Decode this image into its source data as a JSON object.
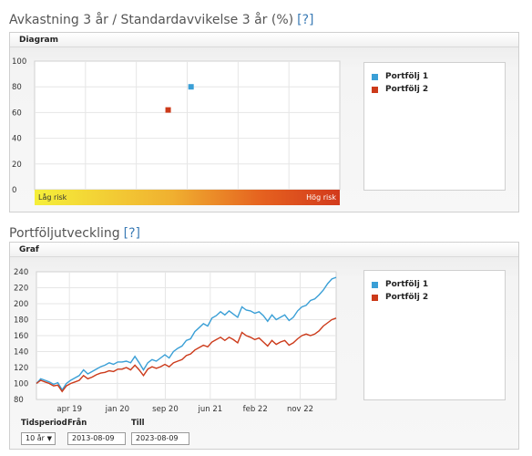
{
  "section1": {
    "title": "Avkastning 3 år / Standardavvikelse 3 år (%)",
    "help": "[?]",
    "panel_label": "Diagram"
  },
  "section2": {
    "title": "Portföljutveckling",
    "help": "[?]",
    "panel_label": "Graf"
  },
  "risk_chart": {
    "chart_data": {
      "type": "scatter",
      "ylim": [
        0,
        100
      ],
      "yticks": [
        0,
        20,
        40,
        60,
        80,
        100
      ],
      "grid": true,
      "low_label": "Låg risk",
      "high_label": "Hög risk",
      "series": [
        {
          "name": "Portfölj 1",
          "color": "#3a9fd6",
          "x": 20.5,
          "y": 80
        },
        {
          "name": "Portfölj 2",
          "color": "#cc3a1a",
          "x": 17.5,
          "y": 62
        }
      ]
    }
  },
  "legend": [
    {
      "label": "Portfölj 1",
      "color": "#3a9fd6"
    },
    {
      "label": "Portfölj 2",
      "color": "#cc3a1a"
    }
  ],
  "perf_chart": {
    "chart_data": {
      "type": "line",
      "ylim": [
        80,
        240
      ],
      "yticks": [
        80,
        100,
        120,
        140,
        160,
        180,
        200,
        220,
        240
      ],
      "xticks": [
        "apr 19",
        "jan 20",
        "sep 20",
        "jun 21",
        "feb 22",
        "nov 22"
      ],
      "grid": true,
      "series": [
        {
          "name": "Portfölj 1",
          "color": "#3a9fd6",
          "values": [
            100,
            106,
            104,
            102,
            99,
            101,
            92,
            100,
            104,
            107,
            110,
            117,
            112,
            115,
            118,
            121,
            123,
            126,
            124,
            127,
            127,
            128,
            126,
            134,
            126,
            117,
            126,
            130,
            128,
            132,
            136,
            132,
            140,
            144,
            147,
            154,
            156,
            165,
            170,
            175,
            172,
            182,
            185,
            190,
            186,
            191,
            187,
            183,
            196,
            192,
            191,
            188,
            190,
            185,
            178,
            186,
            180,
            183,
            186,
            179,
            183,
            191,
            196,
            198,
            204,
            206,
            211,
            217,
            225,
            231,
            233
          ]
        },
        {
          "name": "Portfölj 2",
          "color": "#cc3a1a",
          "values": [
            100,
            104,
            102,
            100,
            97,
            98,
            90,
            97,
            100,
            102,
            104,
            110,
            106,
            108,
            111,
            113,
            114,
            116,
            115,
            118,
            118,
            120,
            117,
            123,
            117,
            110,
            118,
            121,
            119,
            121,
            124,
            121,
            126,
            128,
            130,
            135,
            137,
            142,
            145,
            148,
            146,
            152,
            155,
            158,
            154,
            158,
            155,
            151,
            164,
            160,
            158,
            155,
            157,
            152,
            147,
            154,
            149,
            152,
            154,
            148,
            151,
            156,
            160,
            162,
            160,
            162,
            166,
            172,
            176,
            180,
            182
          ]
        }
      ]
    }
  },
  "controls": {
    "period_label": "Tidsperiod",
    "period_value": "10 år",
    "from_label": "Från",
    "from_value": "2013-08-09",
    "to_label": "Till",
    "to_value": "2023-08-09"
  }
}
